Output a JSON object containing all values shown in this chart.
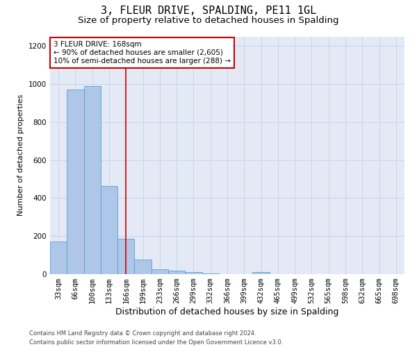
{
  "title": "3, FLEUR DRIVE, SPALDING, PE11 1GL",
  "subtitle": "Size of property relative to detached houses in Spalding",
  "xlabel": "Distribution of detached houses by size in Spalding",
  "ylabel": "Number of detached properties",
  "categories": [
    "33sqm",
    "66sqm",
    "100sqm",
    "133sqm",
    "166sqm",
    "199sqm",
    "233sqm",
    "266sqm",
    "299sqm",
    "332sqm",
    "366sqm",
    "399sqm",
    "432sqm",
    "465sqm",
    "499sqm",
    "532sqm",
    "565sqm",
    "598sqm",
    "632sqm",
    "665sqm",
    "698sqm"
  ],
  "values": [
    170,
    970,
    990,
    465,
    185,
    75,
    25,
    18,
    12,
    5,
    0,
    0,
    10,
    0,
    0,
    0,
    0,
    0,
    0,
    0,
    0
  ],
  "bar_color": "#aec6e8",
  "bar_edge_color": "#5a9fd4",
  "vline_x_index": 4,
  "vline_color": "#cc0000",
  "annotation_text": "3 FLEUR DRIVE: 168sqm\n← 90% of detached houses are smaller (2,605)\n10% of semi-detached houses are larger (288) →",
  "annotation_box_facecolor": "#ffffff",
  "annotation_box_edgecolor": "#cc0000",
  "title_fontsize": 11,
  "subtitle_fontsize": 9.5,
  "tick_fontsize": 7.5,
  "ylabel_fontsize": 8,
  "xlabel_fontsize": 9,
  "annotation_fontsize": 7.5,
  "footer_fontsize": 6,
  "ylim": [
    0,
    1250
  ],
  "yticks": [
    0,
    200,
    400,
    600,
    800,
    1000,
    1200
  ],
  "grid_color": "#c8d4e8",
  "bg_color": "#e4eaf5",
  "footer_text": "Contains HM Land Registry data © Crown copyright and database right 2024.\nContains public sector information licensed under the Open Government Licence v3.0."
}
